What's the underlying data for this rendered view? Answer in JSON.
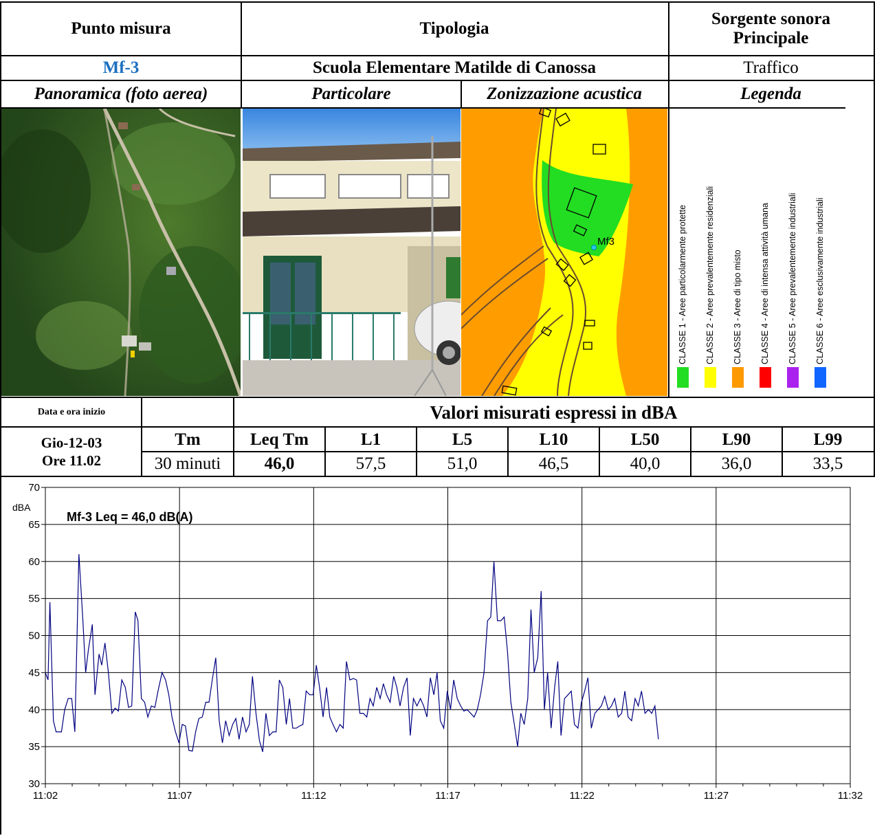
{
  "header": {
    "punto_label": "Punto misura",
    "tipologia_label": "Tipologia",
    "sorgente_label_line1": "Sorgente sonora",
    "sorgente_label_line2": "Principale",
    "punto_value": "Mf-3",
    "tipologia_value": "Scuola Elementare Matilde di Canossa",
    "sorgente_value": "Traffico"
  },
  "image_titles": {
    "panoramica": "Panoramica (foto aerea)",
    "particolare": "Particolare",
    "zonizzazione": "Zonizzazione acustica",
    "legenda": "Legenda"
  },
  "map": {
    "point_label": "Mf3"
  },
  "legend": {
    "items": [
      {
        "label": "CLASSE 1 - Aree particolarmente protette",
        "color": "#22dd22"
      },
      {
        "label": "CLASSE 2 - Aree prevalentemente residenziali",
        "color": "#ffff00"
      },
      {
        "label": "CLASSE 3 - Aree di tipo misto",
        "color": "#ff9900"
      },
      {
        "label": "CLASSE 4 - Aree  di intensa attività umana",
        "color": "#ff0000"
      },
      {
        "label": "CLASSE 5 - Aree prevalentemente industriali",
        "color": "#aa22ee"
      },
      {
        "label": "CLASSE 6 - Aree esclusivamente industriali",
        "color": "#1166ff"
      }
    ]
  },
  "measurements": {
    "data_label": "Data e ora inizio",
    "valori_label": "Valori misurati espressi in dBA",
    "date": "Gio-12-03",
    "time": "Ore 11.02",
    "tm_label": "Tm",
    "tm_value": "30 minuti",
    "columns": [
      "Leq Tm",
      "L1",
      "L5",
      "L10",
      "L50",
      "L90",
      "L99"
    ],
    "values": [
      "46,0",
      "57,5",
      "51,0",
      "46,5",
      "40,0",
      "36,0",
      "33,5"
    ]
  },
  "chart_data": {
    "type": "line",
    "title": "Mf-3 Leq = 46,0 dB(A)",
    "ylabel": "dBA",
    "xlabel": "",
    "ylim": [
      30,
      70
    ],
    "yticks": [
      30,
      35,
      40,
      45,
      50,
      55,
      60,
      65,
      70
    ],
    "xticks": [
      "11:02",
      "11:07",
      "11:12",
      "11:17",
      "11:22",
      "11:27",
      "11:32"
    ],
    "grid": true,
    "line_color": "#000080",
    "x_unit": "minutes after 11:02",
    "series": [
      {
        "values": [
          [
            0.0,
            45.0
          ],
          [
            0.1,
            44.0
          ],
          [
            0.17,
            54.5
          ],
          [
            0.3,
            38.5
          ],
          [
            0.4,
            37.0
          ],
          [
            0.6,
            37.0
          ],
          [
            0.72,
            40.0
          ],
          [
            0.85,
            41.5
          ],
          [
            0.98,
            41.5
          ],
          [
            1.1,
            37.0
          ],
          [
            1.25,
            61.0
          ],
          [
            1.4,
            52.0
          ],
          [
            1.5,
            45.0
          ],
          [
            1.6,
            48.0
          ],
          [
            1.75,
            51.5
          ],
          [
            1.85,
            42.0
          ],
          [
            2.0,
            47.5
          ],
          [
            2.1,
            46.0
          ],
          [
            2.22,
            49.0
          ],
          [
            2.35,
            45.0
          ],
          [
            2.48,
            39.5
          ],
          [
            2.6,
            40.2
          ],
          [
            2.72,
            39.8
          ],
          [
            2.85,
            44.0
          ],
          [
            2.98,
            43.0
          ],
          [
            3.1,
            40.3
          ],
          [
            3.22,
            40.5
          ],
          [
            3.35,
            53.2
          ],
          [
            3.45,
            52.0
          ],
          [
            3.58,
            41.5
          ],
          [
            3.7,
            41.0
          ],
          [
            3.82,
            39.0
          ],
          [
            3.95,
            40.5
          ],
          [
            4.08,
            40.3
          ],
          [
            4.2,
            42.5
          ],
          [
            4.35,
            45.0
          ],
          [
            4.48,
            44.0
          ],
          [
            4.6,
            42.0
          ],
          [
            4.72,
            39.0
          ],
          [
            4.85,
            37.0
          ],
          [
            4.98,
            35.5
          ],
          [
            5.1,
            38.0
          ],
          [
            5.22,
            37.8
          ],
          [
            5.35,
            34.5
          ],
          [
            5.48,
            34.4
          ],
          [
            5.6,
            37.0
          ],
          [
            5.72,
            38.8
          ],
          [
            5.85,
            39.0
          ],
          [
            5.98,
            41.0
          ],
          [
            6.1,
            41.0
          ],
          [
            6.22,
            44.0
          ],
          [
            6.35,
            47.0
          ],
          [
            6.48,
            38.5
          ],
          [
            6.6,
            35.5
          ],
          [
            6.72,
            38.5
          ],
          [
            6.85,
            36.5
          ],
          [
            6.98,
            38.0
          ],
          [
            7.1,
            38.8
          ],
          [
            7.22,
            36.0
          ],
          [
            7.35,
            39.0
          ],
          [
            7.48,
            37.0
          ],
          [
            7.6,
            38.0
          ],
          [
            7.72,
            44.5
          ],
          [
            7.85,
            39.5
          ],
          [
            7.98,
            35.8
          ],
          [
            8.1,
            34.3
          ],
          [
            8.22,
            39.5
          ],
          [
            8.35,
            36.5
          ],
          [
            8.48,
            37.0
          ],
          [
            8.6,
            37.0
          ],
          [
            8.72,
            44.0
          ],
          [
            8.85,
            43.0
          ],
          [
            8.98,
            38.0
          ],
          [
            9.1,
            41.5
          ],
          [
            9.22,
            37.5
          ],
          [
            9.35,
            37.5
          ],
          [
            9.48,
            37.8
          ],
          [
            9.6,
            38.0
          ],
          [
            9.72,
            42.5
          ],
          [
            9.85,
            42.0
          ],
          [
            9.98,
            42.0
          ],
          [
            10.1,
            46.0
          ],
          [
            10.22,
            43.0
          ],
          [
            10.35,
            39.0
          ],
          [
            10.48,
            43.0
          ],
          [
            10.6,
            39.0
          ],
          [
            10.72,
            38.0
          ],
          [
            10.85,
            37.0
          ],
          [
            10.98,
            38.0
          ],
          [
            11.1,
            37.5
          ],
          [
            11.22,
            46.5
          ],
          [
            11.35,
            44.0
          ],
          [
            11.48,
            44.2
          ],
          [
            11.6,
            44.0
          ],
          [
            11.72,
            39.5
          ],
          [
            11.85,
            39.5
          ],
          [
            11.98,
            39.0
          ],
          [
            12.1,
            41.5
          ],
          [
            12.22,
            40.5
          ],
          [
            12.35,
            43.0
          ],
          [
            12.48,
            41.5
          ],
          [
            12.6,
            43.5
          ],
          [
            12.72,
            42.0
          ],
          [
            12.85,
            41.0
          ],
          [
            12.98,
            44.5
          ],
          [
            13.1,
            43.0
          ],
          [
            13.22,
            40.5
          ],
          [
            13.35,
            43.0
          ],
          [
            13.48,
            44.3
          ],
          [
            13.6,
            36.5
          ],
          [
            13.72,
            41.5
          ],
          [
            13.85,
            40.5
          ],
          [
            13.98,
            41.5
          ],
          [
            14.1,
            40.5
          ],
          [
            14.22,
            39.0
          ],
          [
            14.35,
            44.3
          ],
          [
            14.48,
            42.0
          ],
          [
            14.6,
            45.0
          ],
          [
            14.72,
            38.5
          ],
          [
            14.85,
            37.5
          ],
          [
            14.98,
            42.5
          ],
          [
            15.1,
            40.0
          ],
          [
            15.22,
            44.0
          ],
          [
            15.35,
            41.5
          ],
          [
            15.48,
            40.5
          ],
          [
            15.6,
            39.8
          ],
          [
            15.72,
            40.0
          ],
          [
            15.85,
            39.5
          ],
          [
            15.98,
            39.0
          ],
          [
            16.1,
            40.0
          ],
          [
            16.22,
            42.0
          ],
          [
            16.35,
            45.0
          ],
          [
            16.48,
            52.0
          ],
          [
            16.6,
            52.5
          ],
          [
            16.72,
            60.0
          ],
          [
            16.85,
            52.0
          ],
          [
            16.98,
            52.0
          ],
          [
            17.1,
            52.5
          ],
          [
            17.22,
            48.0
          ],
          [
            17.35,
            41.0
          ],
          [
            17.48,
            38.0
          ],
          [
            17.6,
            35.0
          ],
          [
            17.72,
            39.5
          ],
          [
            17.85,
            38.0
          ],
          [
            17.98,
            41.5
          ],
          [
            18.1,
            53.5
          ],
          [
            18.22,
            45.0
          ],
          [
            18.35,
            47.0
          ],
          [
            18.48,
            56.0
          ],
          [
            18.6,
            40.0
          ],
          [
            18.72,
            45.0
          ],
          [
            18.85,
            37.5
          ],
          [
            18.98,
            43.0
          ],
          [
            19.1,
            46.5
          ],
          [
            19.22,
            36.5
          ],
          [
            19.35,
            41.5
          ],
          [
            19.48,
            42.0
          ],
          [
            19.6,
            42.5
          ],
          [
            19.72,
            38.0
          ],
          [
            19.85,
            37.5
          ],
          [
            19.98,
            41.0
          ],
          [
            20.1,
            42.5
          ],
          [
            20.22,
            44.3
          ],
          [
            20.35,
            37.5
          ],
          [
            20.48,
            39.5
          ],
          [
            20.6,
            40.0
          ],
          [
            20.72,
            40.5
          ],
          [
            20.85,
            41.8
          ],
          [
            20.98,
            40.0
          ],
          [
            21.1,
            40.5
          ],
          [
            21.22,
            41.5
          ],
          [
            21.35,
            39.0
          ],
          [
            21.48,
            39.5
          ],
          [
            21.6,
            42.5
          ],
          [
            21.72,
            39.0
          ],
          [
            21.85,
            38.5
          ],
          [
            21.98,
            41.5
          ],
          [
            22.1,
            40.5
          ],
          [
            22.22,
            42.5
          ],
          [
            22.35,
            39.5
          ],
          [
            22.48,
            40.0
          ],
          [
            22.6,
            39.5
          ],
          [
            22.72,
            40.5
          ],
          [
            22.85,
            36.0
          ]
        ]
      }
    ]
  }
}
